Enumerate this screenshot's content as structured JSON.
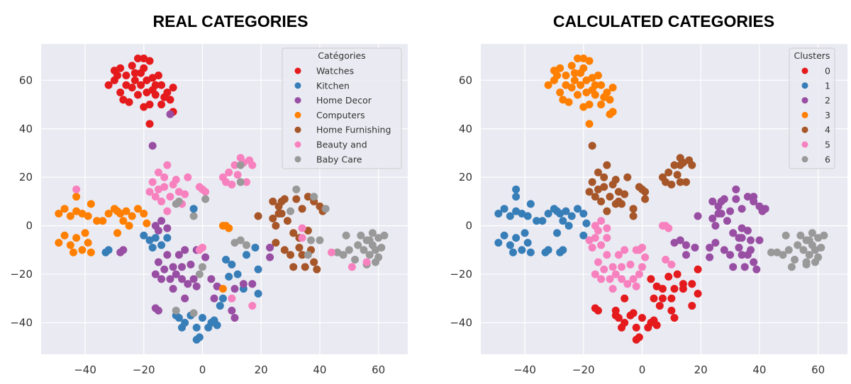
{
  "chart_data": [
    {
      "type": "scatter",
      "title": "REAL CATEGORIES",
      "legend_title": "Catégories",
      "legend_placement": "top-right",
      "label_field": 2,
      "legend": [
        "Watches",
        "Kitchen",
        "Home Decor",
        "Computers",
        "Home Furnishing",
        "Beauty and",
        "Baby Care"
      ],
      "xlim": [
        -55,
        70
      ],
      "ylim": [
        -53,
        75
      ],
      "xticks": [
        -40,
        -20,
        0,
        20,
        40,
        60
      ],
      "yticks": [
        -40,
        -20,
        0,
        20,
        40,
        60
      ],
      "grid": true
    },
    {
      "type": "scatter",
      "title": "CALCULATED  CATEGORIES",
      "legend_title": "Clusters",
      "legend_placement": "top-right",
      "label_field": 3,
      "legend": [
        "0",
        "1",
        "2",
        "3",
        "4",
        "5",
        "6"
      ],
      "xlim": [
        -55,
        70
      ],
      "ylim": [
        -53,
        75
      ],
      "xticks": [
        -40,
        -20,
        0,
        20,
        40,
        60
      ],
      "yticks": [
        -40,
        -20,
        0,
        20,
        40,
        60
      ],
      "grid": true
    }
  ],
  "colors": [
    "#e41a1c",
    "#377eb8",
    "#984ea3",
    "#ff7f00",
    "#a65628",
    "#f781bf",
    "#999999"
  ],
  "points_format": [
    "x",
    "y",
    "real_category_index",
    "cluster_index"
  ],
  "points": [
    [
      -30,
      64,
      0,
      3
    ],
    [
      -28,
      65,
      0,
      3
    ],
    [
      -26,
      62,
      0,
      3
    ],
    [
      -24,
      66,
      0,
      3
    ],
    [
      -22,
      69,
      0,
      3
    ],
    [
      -20,
      69,
      0,
      3
    ],
    [
      -18,
      68,
      0,
      3
    ],
    [
      -21,
      63,
      0,
      3
    ],
    [
      -19,
      60,
      0,
      3
    ],
    [
      -17,
      61,
      0,
      3
    ],
    [
      -15,
      62,
      0,
      3
    ],
    [
      -14,
      58,
      0,
      3
    ],
    [
      -12,
      55,
      0,
      3
    ],
    [
      -10,
      57,
      0,
      3
    ],
    [
      -11,
      52,
      0,
      3
    ],
    [
      -13,
      53,
      0,
      3
    ],
    [
      -16,
      54,
      0,
      3
    ],
    [
      -18,
      50,
      0,
      3
    ],
    [
      -20,
      49,
      0,
      3
    ],
    [
      -22,
      54,
      0,
      3
    ],
    [
      -24,
      57,
      0,
      3
    ],
    [
      -26,
      58,
      0,
      3
    ],
    [
      -28,
      55,
      0,
      3
    ],
    [
      -30,
      60,
      0,
      3
    ],
    [
      -32,
      58,
      0,
      3
    ],
    [
      -27,
      52,
      0,
      3
    ],
    [
      -25,
      51,
      0,
      3
    ],
    [
      -21,
      58,
      0,
      3
    ],
    [
      -23,
      60,
      0,
      3
    ],
    [
      -17,
      56,
      0,
      3
    ],
    [
      -19,
      55,
      0,
      3
    ],
    [
      -18,
      42,
      0,
      3
    ],
    [
      -10,
      47,
      0,
      3
    ],
    [
      -14,
      50,
      0,
      3
    ],
    [
      -29,
      62,
      0,
      3
    ],
    [
      -20,
      65,
      0,
      3
    ],
    [
      -16,
      58,
      0,
      3
    ],
    [
      -23,
      63,
      0,
      3
    ],
    [
      -11,
      46,
      2,
      3
    ],
    [
      -17,
      33,
      2,
      4
    ],
    [
      -17,
      18,
      5,
      4
    ],
    [
      -15,
      15,
      5,
      4
    ],
    [
      -13,
      20,
      5,
      4
    ],
    [
      -12,
      25,
      5,
      4
    ],
    [
      -10,
      17,
      5,
      4
    ],
    [
      -8,
      14,
      5,
      4
    ],
    [
      -16,
      12,
      5,
      4
    ],
    [
      -14,
      10,
      5,
      4
    ],
    [
      -11,
      12,
      5,
      4
    ],
    [
      -9,
      19,
      5,
      4
    ],
    [
      -7,
      9,
      5,
      4
    ],
    [
      -18,
      14,
      5,
      4
    ],
    [
      -15,
      22,
      5,
      4
    ],
    [
      -6,
      13,
      5,
      4
    ],
    [
      -5,
      20,
      5,
      4
    ],
    [
      -13,
      16,
      5,
      4
    ],
    [
      -12,
      6,
      5,
      4
    ],
    [
      0,
      15,
      5,
      4
    ],
    [
      1,
      14,
      5,
      4
    ],
    [
      -1,
      16,
      5,
      4
    ],
    [
      7,
      20,
      5,
      4
    ],
    [
      9,
      22,
      5,
      4
    ],
    [
      8,
      18,
      5,
      4
    ],
    [
      11,
      25,
      5,
      4
    ],
    [
      12,
      21,
      5,
      4
    ],
    [
      14,
      26,
      5,
      4
    ],
    [
      16,
      27,
      5,
      4
    ],
    [
      17,
      25,
      5,
      4
    ],
    [
      15,
      18,
      5,
      4
    ],
    [
      10,
      17,
      5,
      4
    ],
    [
      13,
      28,
      5,
      4
    ],
    [
      1,
      11,
      6,
      4
    ],
    [
      -3,
      4,
      6,
      4
    ],
    [
      -9,
      9,
      6,
      4
    ],
    [
      -8,
      10,
      6,
      4
    ],
    [
      13,
      25,
      6,
      4
    ],
    [
      13,
      18,
      6,
      4
    ],
    [
      -3,
      7,
      1,
      4
    ],
    [
      -49,
      5,
      3,
      1
    ],
    [
      -47,
      7,
      3,
      1
    ],
    [
      -45,
      4,
      3,
      1
    ],
    [
      -43,
      6,
      3,
      1
    ],
    [
      -41,
      5,
      3,
      1
    ],
    [
      -39,
      4,
      3,
      1
    ],
    [
      -38,
      9,
      3,
      1
    ],
    [
      -43,
      12,
      3,
      1
    ],
    [
      -36,
      2,
      3,
      1
    ],
    [
      -30,
      7,
      3,
      1
    ],
    [
      -28,
      5,
      3,
      1
    ],
    [
      -26,
      6,
      3,
      1
    ],
    [
      -24,
      4,
      3,
      1
    ],
    [
      -22,
      7,
      3,
      1
    ],
    [
      -20,
      5,
      3,
      1
    ],
    [
      -19,
      1,
      3,
      1
    ],
    [
      -32,
      5,
      3,
      1
    ],
    [
      -27,
      2,
      3,
      1
    ],
    [
      -25,
      0,
      3,
      1
    ],
    [
      -29,
      6,
      3,
      1
    ],
    [
      -34,
      2,
      3,
      1
    ],
    [
      -49,
      -7,
      3,
      1
    ],
    [
      -47,
      -4,
      3,
      1
    ],
    [
      -45,
      -8,
      3,
      1
    ],
    [
      -43,
      -5,
      3,
      1
    ],
    [
      -41,
      -10,
      3,
      1
    ],
    [
      -39,
      -7,
      3,
      1
    ],
    [
      -38,
      -11,
      3,
      1
    ],
    [
      -40,
      -3,
      3,
      1
    ],
    [
      -44,
      -11,
      3,
      1
    ],
    [
      -29,
      -3,
      3,
      1
    ],
    [
      -43,
      15,
      5,
      1
    ],
    [
      -33,
      -11,
      1,
      1
    ],
    [
      -32,
      -10,
      1,
      1
    ],
    [
      -28,
      -11,
      2,
      1
    ],
    [
      -27,
      -10,
      2,
      1
    ],
    [
      -20,
      -4,
      1,
      1
    ],
    [
      -18,
      -6,
      1,
      5
    ],
    [
      -16,
      -5,
      1,
      5
    ],
    [
      -14,
      -8,
      1,
      5
    ],
    [
      -17,
      -9,
      1,
      5
    ],
    [
      -12,
      -5,
      1,
      5
    ],
    [
      -16,
      0,
      2,
      5
    ],
    [
      -14,
      2,
      2,
      5
    ],
    [
      -12,
      -1,
      2,
      5
    ],
    [
      -15,
      -2,
      2,
      5
    ],
    [
      -15,
      -15,
      2,
      5
    ],
    [
      -13,
      -18,
      2,
      5
    ],
    [
      -11,
      -22,
      2,
      5
    ],
    [
      -9,
      -20,
      2,
      5
    ],
    [
      -7,
      -17,
      2,
      5
    ],
    [
      -5,
      -24,
      2,
      5
    ],
    [
      -8,
      -12,
      2,
      5
    ],
    [
      -12,
      -12,
      2,
      5
    ],
    [
      -14,
      -22,
      2,
      5
    ],
    [
      -10,
      -26,
      2,
      5
    ],
    [
      -6,
      -10,
      2,
      5
    ],
    [
      -3,
      -22,
      2,
      5
    ],
    [
      -16,
      -20,
      2,
      5
    ],
    [
      -4,
      -16,
      2,
      5
    ],
    [
      -2,
      -25,
      2,
      5
    ],
    [
      -10,
      -17,
      2,
      5
    ],
    [
      -7,
      -22,
      2,
      5
    ],
    [
      -16,
      -34,
      2,
      0
    ],
    [
      -15,
      -35,
      2,
      0
    ],
    [
      -6,
      -30,
      2,
      0
    ],
    [
      -8,
      -38,
      1,
      0
    ],
    [
      -6,
      -40,
      1,
      0
    ],
    [
      -4,
      -37,
      1,
      0
    ],
    [
      -2,
      -42,
      1,
      0
    ],
    [
      -1,
      -46,
      1,
      0
    ],
    [
      -2,
      -47,
      1,
      0
    ],
    [
      0,
      -38,
      1,
      0
    ],
    [
      3,
      -40,
      1,
      0
    ],
    [
      5,
      -41,
      1,
      0
    ],
    [
      4,
      -39,
      1,
      0
    ],
    [
      -7,
      -42,
      1,
      0
    ],
    [
      -9,
      -37,
      1,
      0
    ],
    [
      2,
      -42,
      1,
      0
    ],
    [
      -9,
      -35,
      6,
      0
    ],
    [
      -3,
      -36,
      6,
      0
    ],
    [
      8,
      -14,
      1,
      5
    ],
    [
      10,
      -16,
      1,
      5
    ],
    [
      9,
      -21,
      1,
      0
    ],
    [
      12,
      -20,
      1,
      0
    ],
    [
      14,
      -26,
      1,
      0
    ],
    [
      19,
      -18,
      1,
      0
    ],
    [
      19,
      -28,
      1,
      0
    ],
    [
      7,
      -30,
      1,
      0
    ],
    [
      6,
      -33,
      1,
      0
    ],
    [
      15,
      -12,
      1,
      2
    ],
    [
      18,
      -9,
      1,
      2
    ],
    [
      -2,
      -10,
      2,
      5
    ],
    [
      1,
      -13,
      2,
      5
    ],
    [
      3,
      -22,
      2,
      0
    ],
    [
      5,
      -25,
      2,
      0
    ],
    [
      11,
      -26,
      2,
      0
    ],
    [
      14,
      -24,
      2,
      0
    ],
    [
      17,
      -24,
      2,
      0
    ],
    [
      11,
      -38,
      2,
      0
    ],
    [
      10,
      -35,
      2,
      0
    ],
    [
      4,
      -30,
      2,
      0
    ],
    [
      -1,
      -20,
      6,
      5
    ],
    [
      0,
      -17,
      6,
      5
    ],
    [
      -1,
      -10,
      5,
      5
    ],
    [
      0,
      -9,
      5,
      5
    ],
    [
      7,
      0,
      3,
      5
    ],
    [
      8,
      0,
      3,
      5
    ],
    [
      9,
      -1,
      3,
      5
    ],
    [
      7,
      -26,
      3,
      0
    ],
    [
      17,
      -33,
      5,
      0
    ],
    [
      10,
      -30,
      5,
      0
    ],
    [
      11,
      -7,
      6,
      2
    ],
    [
      13,
      -6,
      6,
      2
    ],
    [
      15,
      -8,
      6,
      2
    ],
    [
      23,
      -9,
      2,
      2
    ],
    [
      23,
      -13,
      2,
      2
    ],
    [
      19,
      4,
      4,
      2
    ],
    [
      24,
      10,
      4,
      2
    ],
    [
      26,
      8,
      4,
      2
    ],
    [
      28,
      11,
      4,
      2
    ],
    [
      24,
      3,
      4,
      2
    ],
    [
      27,
      5,
      4,
      2
    ],
    [
      25,
      0,
      4,
      2
    ],
    [
      29,
      2,
      4,
      2
    ],
    [
      32,
      11,
      4,
      2
    ],
    [
      34,
      7,
      4,
      2
    ],
    [
      36,
      12,
      4,
      2
    ],
    [
      38,
      10,
      4,
      2
    ],
    [
      40,
      8,
      4,
      2
    ],
    [
      41,
      6,
      4,
      2
    ],
    [
      31,
      -3,
      4,
      2
    ],
    [
      33,
      -5,
      4,
      2
    ],
    [
      36,
      -2,
      4,
      2
    ],
    [
      25,
      -7,
      4,
      2
    ],
    [
      28,
      -10,
      4,
      2
    ],
    [
      30,
      -12,
      4,
      2
    ],
    [
      34,
      -12,
      4,
      2
    ],
    [
      37,
      -10,
      4,
      2
    ],
    [
      38,
      -15,
      4,
      2
    ],
    [
      35,
      -17,
      4,
      2
    ],
    [
      39,
      -18,
      4,
      2
    ],
    [
      31,
      -17,
      4,
      2
    ],
    [
      33,
      -9,
      4,
      2
    ],
    [
      26,
      5,
      4,
      2
    ],
    [
      27,
      10,
      4,
      2
    ],
    [
      30,
      6,
      6,
      2
    ],
    [
      32,
      15,
      6,
      2
    ],
    [
      38,
      12,
      6,
      2
    ],
    [
      42,
      7,
      6,
      2
    ],
    [
      37,
      -6,
      6,
      2
    ],
    [
      40,
      -6,
      6,
      2
    ],
    [
      36,
      -12,
      6,
      2
    ],
    [
      34,
      -1,
      5,
      2
    ],
    [
      34,
      -5,
      5,
      2
    ],
    [
      46,
      -11,
      6,
      6
    ],
    [
      48,
      -12,
      6,
      6
    ],
    [
      50,
      -10,
      6,
      6
    ],
    [
      52,
      -14,
      6,
      6
    ],
    [
      54,
      -4,
      6,
      6
    ],
    [
      56,
      -6,
      6,
      6
    ],
    [
      58,
      -3,
      6,
      6
    ],
    [
      60,
      -5,
      6,
      6
    ],
    [
      62,
      -4,
      6,
      6
    ],
    [
      55,
      -10,
      6,
      6
    ],
    [
      57,
      -12,
      6,
      6
    ],
    [
      59,
      -15,
      6,
      6
    ],
    [
      61,
      -9,
      6,
      6
    ],
    [
      53,
      -8,
      6,
      6
    ],
    [
      58,
      -8,
      6,
      6
    ],
    [
      60,
      -13,
      6,
      6
    ],
    [
      56,
      -16,
      6,
      6
    ],
    [
      49,
      -4,
      6,
      6
    ],
    [
      57,
      -6,
      6,
      6
    ],
    [
      59,
      -10,
      6,
      6
    ],
    [
      44,
      -11,
      5,
      6
    ],
    [
      51,
      -17,
      5,
      6
    ],
    [
      56,
      -15,
      5,
      6
    ]
  ]
}
